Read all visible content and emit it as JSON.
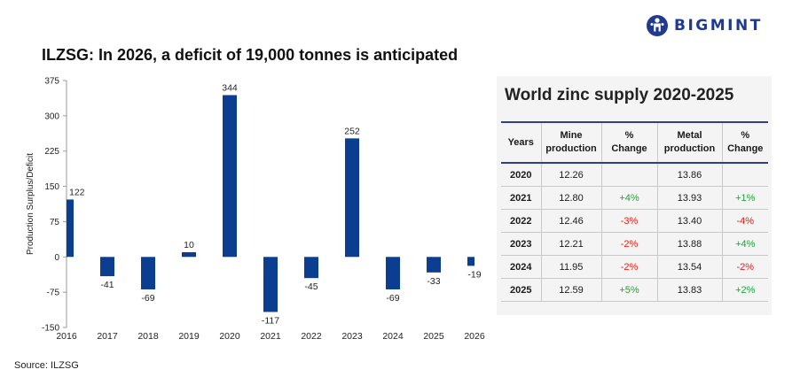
{
  "brand": {
    "name": "BIGMINT"
  },
  "chart_title": "ILZSG: In 2026, a deficit of 19,000 tonnes is anticipated",
  "source": "Source: ILZSG",
  "colors": {
    "bar": "#0b3d91",
    "brand": "#1f3a8f",
    "table_rule": "#2f3e93",
    "positive": "#21a03a",
    "negative": "#e0201b"
  },
  "chart_data": {
    "type": "bar",
    "title": "ILZSG: In 2026, a deficit of 19,000 tonnes is anticipated",
    "xlabel": "",
    "ylabel": "Production Surplus/Deficit",
    "categories": [
      "2016",
      "2017",
      "2018",
      "2019",
      "2020",
      "2021",
      "2022",
      "2023",
      "2024",
      "2025",
      "2026"
    ],
    "values": [
      122,
      -41,
      -69,
      10,
      344,
      -117,
      -45,
      252,
      -69,
      -33,
      -19
    ],
    "ylim": [
      -150,
      375
    ],
    "yticks": [
      -150,
      -75,
      0,
      75,
      150,
      225,
      300,
      375
    ],
    "grid": false,
    "data_labels": true
  },
  "table": {
    "title": "World zinc supply 2020-2025",
    "headers": {
      "years": "Years",
      "mine_1": "Mine",
      "mine_2": "production",
      "pct1_1": "%",
      "pct1_2": "Change",
      "metal_1": "Metal",
      "metal_2": "production",
      "pct2_1": "%",
      "pct2_2": "Change"
    },
    "rows": [
      {
        "year": "2020",
        "mine": "12.26",
        "mine_change": "",
        "metal": "13.86",
        "metal_change": ""
      },
      {
        "year": "2021",
        "mine": "12.80",
        "mine_change": "+4%",
        "metal": "13.93",
        "metal_change": "+1%"
      },
      {
        "year": "2022",
        "mine": "12.46",
        "mine_change": "-3%",
        "metal": "13.40",
        "metal_change": "-4%"
      },
      {
        "year": "2023",
        "mine": "12.21",
        "mine_change": "-2%",
        "metal": "13.88",
        "metal_change": "+4%"
      },
      {
        "year": "2024",
        "mine": "11.95",
        "mine_change": "-2%",
        "metal": "13.54",
        "metal_change": "-2%"
      },
      {
        "year": "2025",
        "mine": "12.59",
        "mine_change": "+5%",
        "metal": "13.83",
        "metal_change": "+2%"
      }
    ]
  }
}
